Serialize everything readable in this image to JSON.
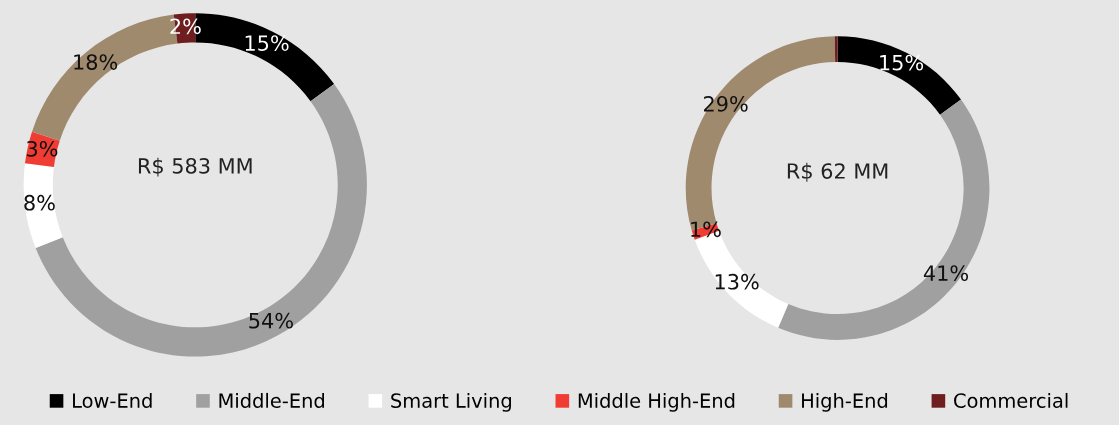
{
  "chart_data": [
    {
      "type": "donut",
      "categories": [
        "Low-End",
        "Middle-End",
        "Smart Living",
        "Middle High-End",
        "High-End",
        "Commercial"
      ],
      "values": [
        15,
        54,
        8,
        3,
        18,
        2
      ],
      "colors": [
        "#000000",
        "#a0a0a0",
        "#ffffff",
        "#f03c32",
        "#a08a6e",
        "#6e1e1e"
      ],
      "value_labels": [
        "15%",
        "54%",
        "8%",
        "3%",
        "18%",
        "2%"
      ],
      "annotations": [
        "R$ 583 MM"
      ],
      "legend": "bottom"
    },
    {
      "type": "donut",
      "categories": [
        null,
        null,
        null,
        null,
        null,
        null
      ],
      "values": [
        15,
        41,
        13,
        1,
        29,
        0.3
      ],
      "colors": [
        "#000000",
        "#a0a0a0",
        "#ffffff",
        "#f03c32",
        "#a08a6e",
        "#6e1e1e"
      ],
      "value_labels": [
        "15%",
        "41%",
        "13%",
        "1%",
        "29%",
        null
      ],
      "annotations": [
        "R$ 62 MM"
      ]
    }
  ]
}
